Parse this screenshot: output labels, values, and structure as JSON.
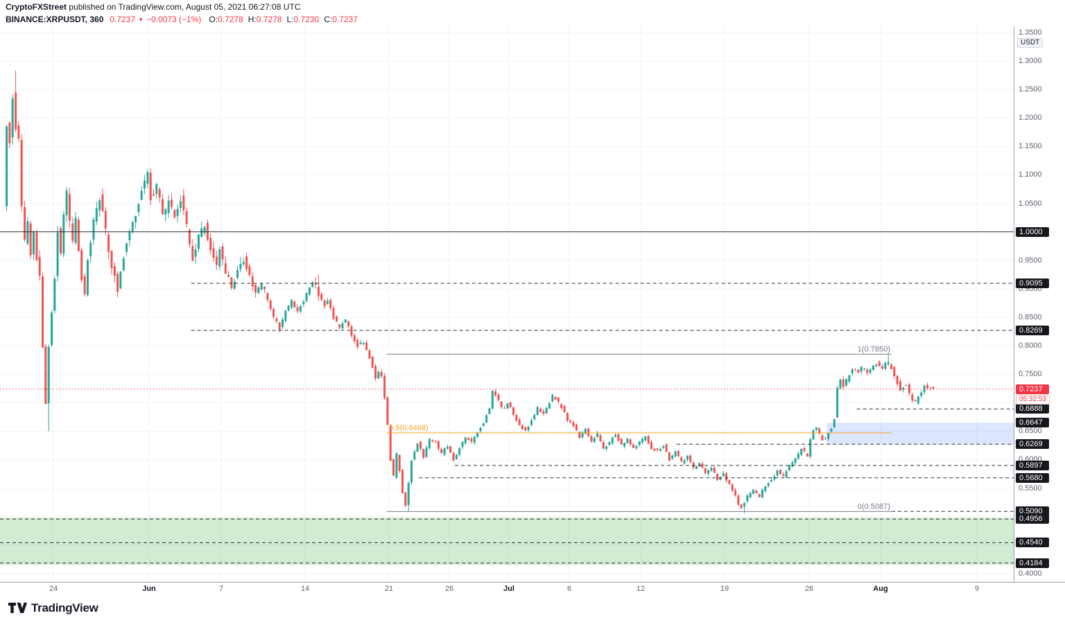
{
  "header": {
    "publisher": "CryptoFXStreet",
    "publish_info": "published on TradingView.com, August 05, 2021 06:27:08 UTC",
    "symbol": "BINANCE:XRPUSDT, 360",
    "price": "0.7237",
    "down_arrow": "▼",
    "change": "−0.0073 (−1%)",
    "ohlc": [
      {
        "label": "O:",
        "value": "0.7278"
      },
      {
        "label": "H:",
        "value": "0.7278"
      },
      {
        "label": "L:",
        "value": "0.7230"
      },
      {
        "label": "C:",
        "value": "0.7237"
      }
    ]
  },
  "footer": {
    "brand": "TradingView"
  },
  "colors": {
    "up": "#26a69a",
    "down": "#ef5350",
    "accent_red": "#f23645",
    "level": "#2a2e39",
    "grid": "#f0f3fa",
    "fib_gray": "#787b86",
    "fib_orange": "#f5a623"
  },
  "chart_data": {
    "type": "candlestick",
    "symbol": "BINANCE:XRPUSDT",
    "interval": "360",
    "currency": "USDT",
    "current_price": {
      "value": 0.7237,
      "label": "0.7237",
      "countdown": "05:32:53"
    },
    "last_candle": {
      "o": 0.7278,
      "h": 0.7278,
      "l": 0.723,
      "c": 0.7237
    },
    "y_axis": {
      "min": 0.4,
      "max": 1.35,
      "tick_step": 0.05,
      "labels": [
        "1.3500",
        "1.3000",
        "1.2500",
        "1.2000",
        "1.1500",
        "1.1000",
        "1.0500",
        "0.9500",
        "0.9000",
        "0.8500",
        "0.8000",
        "0.7500",
        "0.7000",
        "0.6500",
        "0.6000",
        "0.5500",
        "0.4000"
      ]
    },
    "x_axis": [
      {
        "day": 2,
        "label": "24"
      },
      {
        "day": 10,
        "label": "Jun",
        "bold": true
      },
      {
        "day": 16,
        "label": "7"
      },
      {
        "day": 23,
        "label": "14"
      },
      {
        "day": 30,
        "label": "21"
      },
      {
        "day": 35,
        "label": "26"
      },
      {
        "day": 40,
        "label": "Jul",
        "bold": true
      },
      {
        "day": 45,
        "label": "6"
      },
      {
        "day": 51,
        "label": "12"
      },
      {
        "day": 58,
        "label": "19"
      },
      {
        "day": 65,
        "label": "26"
      },
      {
        "day": 71,
        "label": "Aug",
        "bold": true
      },
      {
        "day": 79,
        "label": "9"
      }
    ],
    "levels": [
      {
        "price": "1.0000",
        "value": 1.0,
        "style": "solid",
        "from_day": null
      },
      {
        "price": "0.9095",
        "value": 0.9095,
        "style": "dashed",
        "from_day": 13.5
      },
      {
        "price": "0.8269",
        "value": 0.8269,
        "style": "dashed",
        "from_day": 13.5
      },
      {
        "price": "0.6888",
        "value": 0.6888,
        "style": "dashed",
        "from_day": 69
      },
      {
        "price": "0.6647",
        "value": 0.6647,
        "style": "none",
        "from_day": null
      },
      {
        "price": "0.6269",
        "value": 0.6269,
        "style": "dashed",
        "from_day": 54
      },
      {
        "price": "0.5897",
        "value": 0.5897,
        "style": "dashed",
        "from_day": 35.5
      },
      {
        "price": "0.5680",
        "value": 0.568,
        "style": "dashed",
        "from_day": 32.5
      },
      {
        "price": "0.5090",
        "value": 0.509,
        "style": "dashed",
        "from_day": 71.9
      },
      {
        "price": "0.4956",
        "value": 0.4956,
        "style": "dashed",
        "from_day": null
      },
      {
        "price": "0.4540",
        "value": 0.454,
        "style": "dashed",
        "from_day": null
      },
      {
        "price": "0.4184",
        "value": 0.4184,
        "style": "dashed",
        "from_day": null
      }
    ],
    "fib": [
      {
        "label": "1(0.7850)",
        "value": 0.785,
        "from_day": 29.8,
        "to_day": 71.9,
        "color": "#787b86",
        "label_pos": "right"
      },
      {
        "label": "0.5(0.6468)",
        "value": 0.6468,
        "from_day": 29.8,
        "to_day": 71.9,
        "color": "#f5a623",
        "label_pos": "left"
      },
      {
        "label": "0(0.5087)",
        "value": 0.5087,
        "from_day": 29.8,
        "to_day": 71.9,
        "color": "#787b86",
        "label_pos": "right"
      }
    ],
    "zones": [
      {
        "name": "green-zone",
        "top": 0.498,
        "bottom": 0.415,
        "from_day": null,
        "to_day": null,
        "color": "rgba(76,175,80,0.25)"
      },
      {
        "name": "blue-zone",
        "top": 0.6647,
        "bottom": 0.6269,
        "from_day": 66.5,
        "to_day": null,
        "color": "rgba(41,98,255,0.16)"
      }
    ],
    "anchors": [
      [
        -2,
        1.04
      ],
      [
        -1.75,
        1.19
      ],
      [
        -1.5,
        1.16
      ],
      [
        -1.25,
        1.24
      ],
      [
        -1,
        1.18
      ],
      [
        -0.75,
        1.16
      ],
      [
        -0.5,
        1.05
      ],
      [
        -0.25,
        0.98
      ],
      [
        0,
        1.02
      ],
      [
        0.25,
        0.96
      ],
      [
        0.5,
        1.0
      ],
      [
        0.75,
        0.95
      ],
      [
        1,
        0.92
      ],
      [
        1.25,
        0.8
      ],
      [
        1.5,
        0.7
      ],
      [
        1.75,
        0.8
      ],
      [
        2,
        0.86
      ],
      [
        2.25,
        0.92
      ],
      [
        2.5,
        1.0
      ],
      [
        2.75,
        0.96
      ],
      [
        3,
        1.03
      ],
      [
        3.25,
        1.07
      ],
      [
        3.5,
        1.02
      ],
      [
        3.75,
        0.98
      ],
      [
        4,
        1.02
      ],
      [
        4.25,
        0.97
      ],
      [
        4.5,
        0.92
      ],
      [
        4.75,
        0.89
      ],
      [
        5,
        0.95
      ],
      [
        5.5,
        1.02
      ],
      [
        6,
        1.06
      ],
      [
        6.5,
        1.0
      ],
      [
        7,
        0.94
      ],
      [
        7.5,
        0.9
      ],
      [
        8,
        0.96
      ],
      [
        8.5,
        1.0
      ],
      [
        9,
        1.03
      ],
      [
        9.5,
        1.07
      ],
      [
        10,
        1.1
      ],
      [
        10.25,
        1.06
      ],
      [
        10.75,
        1.08
      ],
      [
        11.25,
        1.03
      ],
      [
        11.75,
        1.05
      ],
      [
        12.25,
        1.03
      ],
      [
        12.75,
        1.06
      ],
      [
        13.25,
        1.01
      ],
      [
        13.75,
        0.95
      ],
      [
        14.25,
        0.99
      ],
      [
        14.75,
        1.01
      ],
      [
        15.25,
        0.97
      ],
      [
        15.75,
        0.94
      ],
      [
        16,
        0.97
      ],
      [
        16.5,
        0.93
      ],
      [
        17,
        0.9
      ],
      [
        17.5,
        0.93
      ],
      [
        18,
        0.95
      ],
      [
        18.5,
        0.92
      ],
      [
        19,
        0.89
      ],
      [
        19.5,
        0.91
      ],
      [
        20,
        0.88
      ],
      [
        20.5,
        0.85
      ],
      [
        21,
        0.83
      ],
      [
        21.5,
        0.86
      ],
      [
        22,
        0.88
      ],
      [
        22.5,
        0.86
      ],
      [
        23,
        0.88
      ],
      [
        23.5,
        0.9
      ],
      [
        23.9,
        0.915
      ],
      [
        24.3,
        0.89
      ],
      [
        24.7,
        0.87
      ],
      [
        25,
        0.88
      ],
      [
        25.5,
        0.85
      ],
      [
        26,
        0.83
      ],
      [
        26.5,
        0.845
      ],
      [
        27,
        0.82
      ],
      [
        27.5,
        0.8
      ],
      [
        28,
        0.805
      ],
      [
        28.5,
        0.78
      ],
      [
        29,
        0.745
      ],
      [
        29.4,
        0.76
      ],
      [
        29.7,
        0.72
      ],
      [
        30,
        0.66
      ],
      [
        30.25,
        0.6
      ],
      [
        30.5,
        0.57
      ],
      [
        30.75,
        0.61
      ],
      [
        31,
        0.58
      ],
      [
        31.25,
        0.54
      ],
      [
        31.5,
        0.52
      ],
      [
        31.75,
        0.56
      ],
      [
        32,
        0.6
      ],
      [
        32.5,
        0.63
      ],
      [
        33,
        0.605
      ],
      [
        33.5,
        0.635
      ],
      [
        34,
        0.63
      ],
      [
        34.5,
        0.61
      ],
      [
        35,
        0.625
      ],
      [
        35.5,
        0.6
      ],
      [
        36,
        0.62
      ],
      [
        36.5,
        0.64
      ],
      [
        37,
        0.63
      ],
      [
        37.5,
        0.65
      ],
      [
        38,
        0.665
      ],
      [
        38.5,
        0.69
      ],
      [
        38.8,
        0.725
      ],
      [
        39.2,
        0.705
      ],
      [
        39.6,
        0.685
      ],
      [
        40,
        0.7
      ],
      [
        40.5,
        0.68
      ],
      [
        41,
        0.66
      ],
      [
        41.5,
        0.65
      ],
      [
        42,
        0.67
      ],
      [
        42.5,
        0.69
      ],
      [
        43,
        0.68
      ],
      [
        43.5,
        0.7
      ],
      [
        43.8,
        0.715
      ],
      [
        44.2,
        0.7
      ],
      [
        44.6,
        0.69
      ],
      [
        45,
        0.67
      ],
      [
        45.5,
        0.66
      ],
      [
        46,
        0.64
      ],
      [
        46.5,
        0.655
      ],
      [
        47,
        0.63
      ],
      [
        47.5,
        0.645
      ],
      [
        48,
        0.62
      ],
      [
        48.5,
        0.63
      ],
      [
        49,
        0.645
      ],
      [
        49.5,
        0.625
      ],
      [
        50,
        0.635
      ],
      [
        50.5,
        0.62
      ],
      [
        51,
        0.63
      ],
      [
        51.5,
        0.64
      ],
      [
        52,
        0.62
      ],
      [
        52.5,
        0.615
      ],
      [
        53,
        0.625
      ],
      [
        53.5,
        0.6
      ],
      [
        54,
        0.615
      ],
      [
        54.5,
        0.595
      ],
      [
        55,
        0.605
      ],
      [
        55.5,
        0.585
      ],
      [
        56,
        0.595
      ],
      [
        56.5,
        0.575
      ],
      [
        57,
        0.585
      ],
      [
        57.5,
        0.565
      ],
      [
        58,
        0.575
      ],
      [
        58.5,
        0.555
      ],
      [
        59,
        0.535
      ],
      [
        59.25,
        0.52
      ],
      [
        59.5,
        0.515
      ],
      [
        59.75,
        0.525
      ],
      [
        60,
        0.535
      ],
      [
        60.5,
        0.545
      ],
      [
        61,
        0.535
      ],
      [
        61.5,
        0.555
      ],
      [
        62,
        0.565
      ],
      [
        62.5,
        0.58
      ],
      [
        63,
        0.57
      ],
      [
        63.5,
        0.59
      ],
      [
        64,
        0.6
      ],
      [
        64.5,
        0.62
      ],
      [
        65,
        0.605
      ],
      [
        65.3,
        0.64
      ],
      [
        65.6,
        0.66
      ],
      [
        66,
        0.645
      ],
      [
        66.4,
        0.63
      ],
      [
        66.8,
        0.65
      ],
      [
        67.2,
        0.66
      ],
      [
        67.45,
        0.72
      ],
      [
        67.7,
        0.74
      ],
      [
        68,
        0.73
      ],
      [
        68.4,
        0.745
      ],
      [
        68.8,
        0.76
      ],
      [
        69.2,
        0.75
      ],
      [
        69.6,
        0.765
      ],
      [
        70,
        0.75
      ],
      [
        70.4,
        0.76
      ],
      [
        70.8,
        0.77
      ],
      [
        71.2,
        0.755
      ],
      [
        71.6,
        0.775
      ],
      [
        72,
        0.76
      ],
      [
        72.4,
        0.74
      ],
      [
        72.8,
        0.72
      ],
      [
        73.2,
        0.735
      ],
      [
        73.6,
        0.71
      ],
      [
        74,
        0.7
      ],
      [
        74.4,
        0.715
      ],
      [
        74.8,
        0.73
      ],
      [
        75.25,
        0.7237
      ]
    ],
    "spikes": [
      {
        "day": -1.25,
        "high": 1.283
      },
      {
        "day": 1.5,
        "low": 0.65
      },
      {
        "day": 23.9,
        "high": 0.925
      },
      {
        "day": 31.5,
        "low": 0.509
      },
      {
        "day": 59.5,
        "low": 0.5055
      },
      {
        "day": 71.6,
        "high": 0.7848
      }
    ]
  }
}
